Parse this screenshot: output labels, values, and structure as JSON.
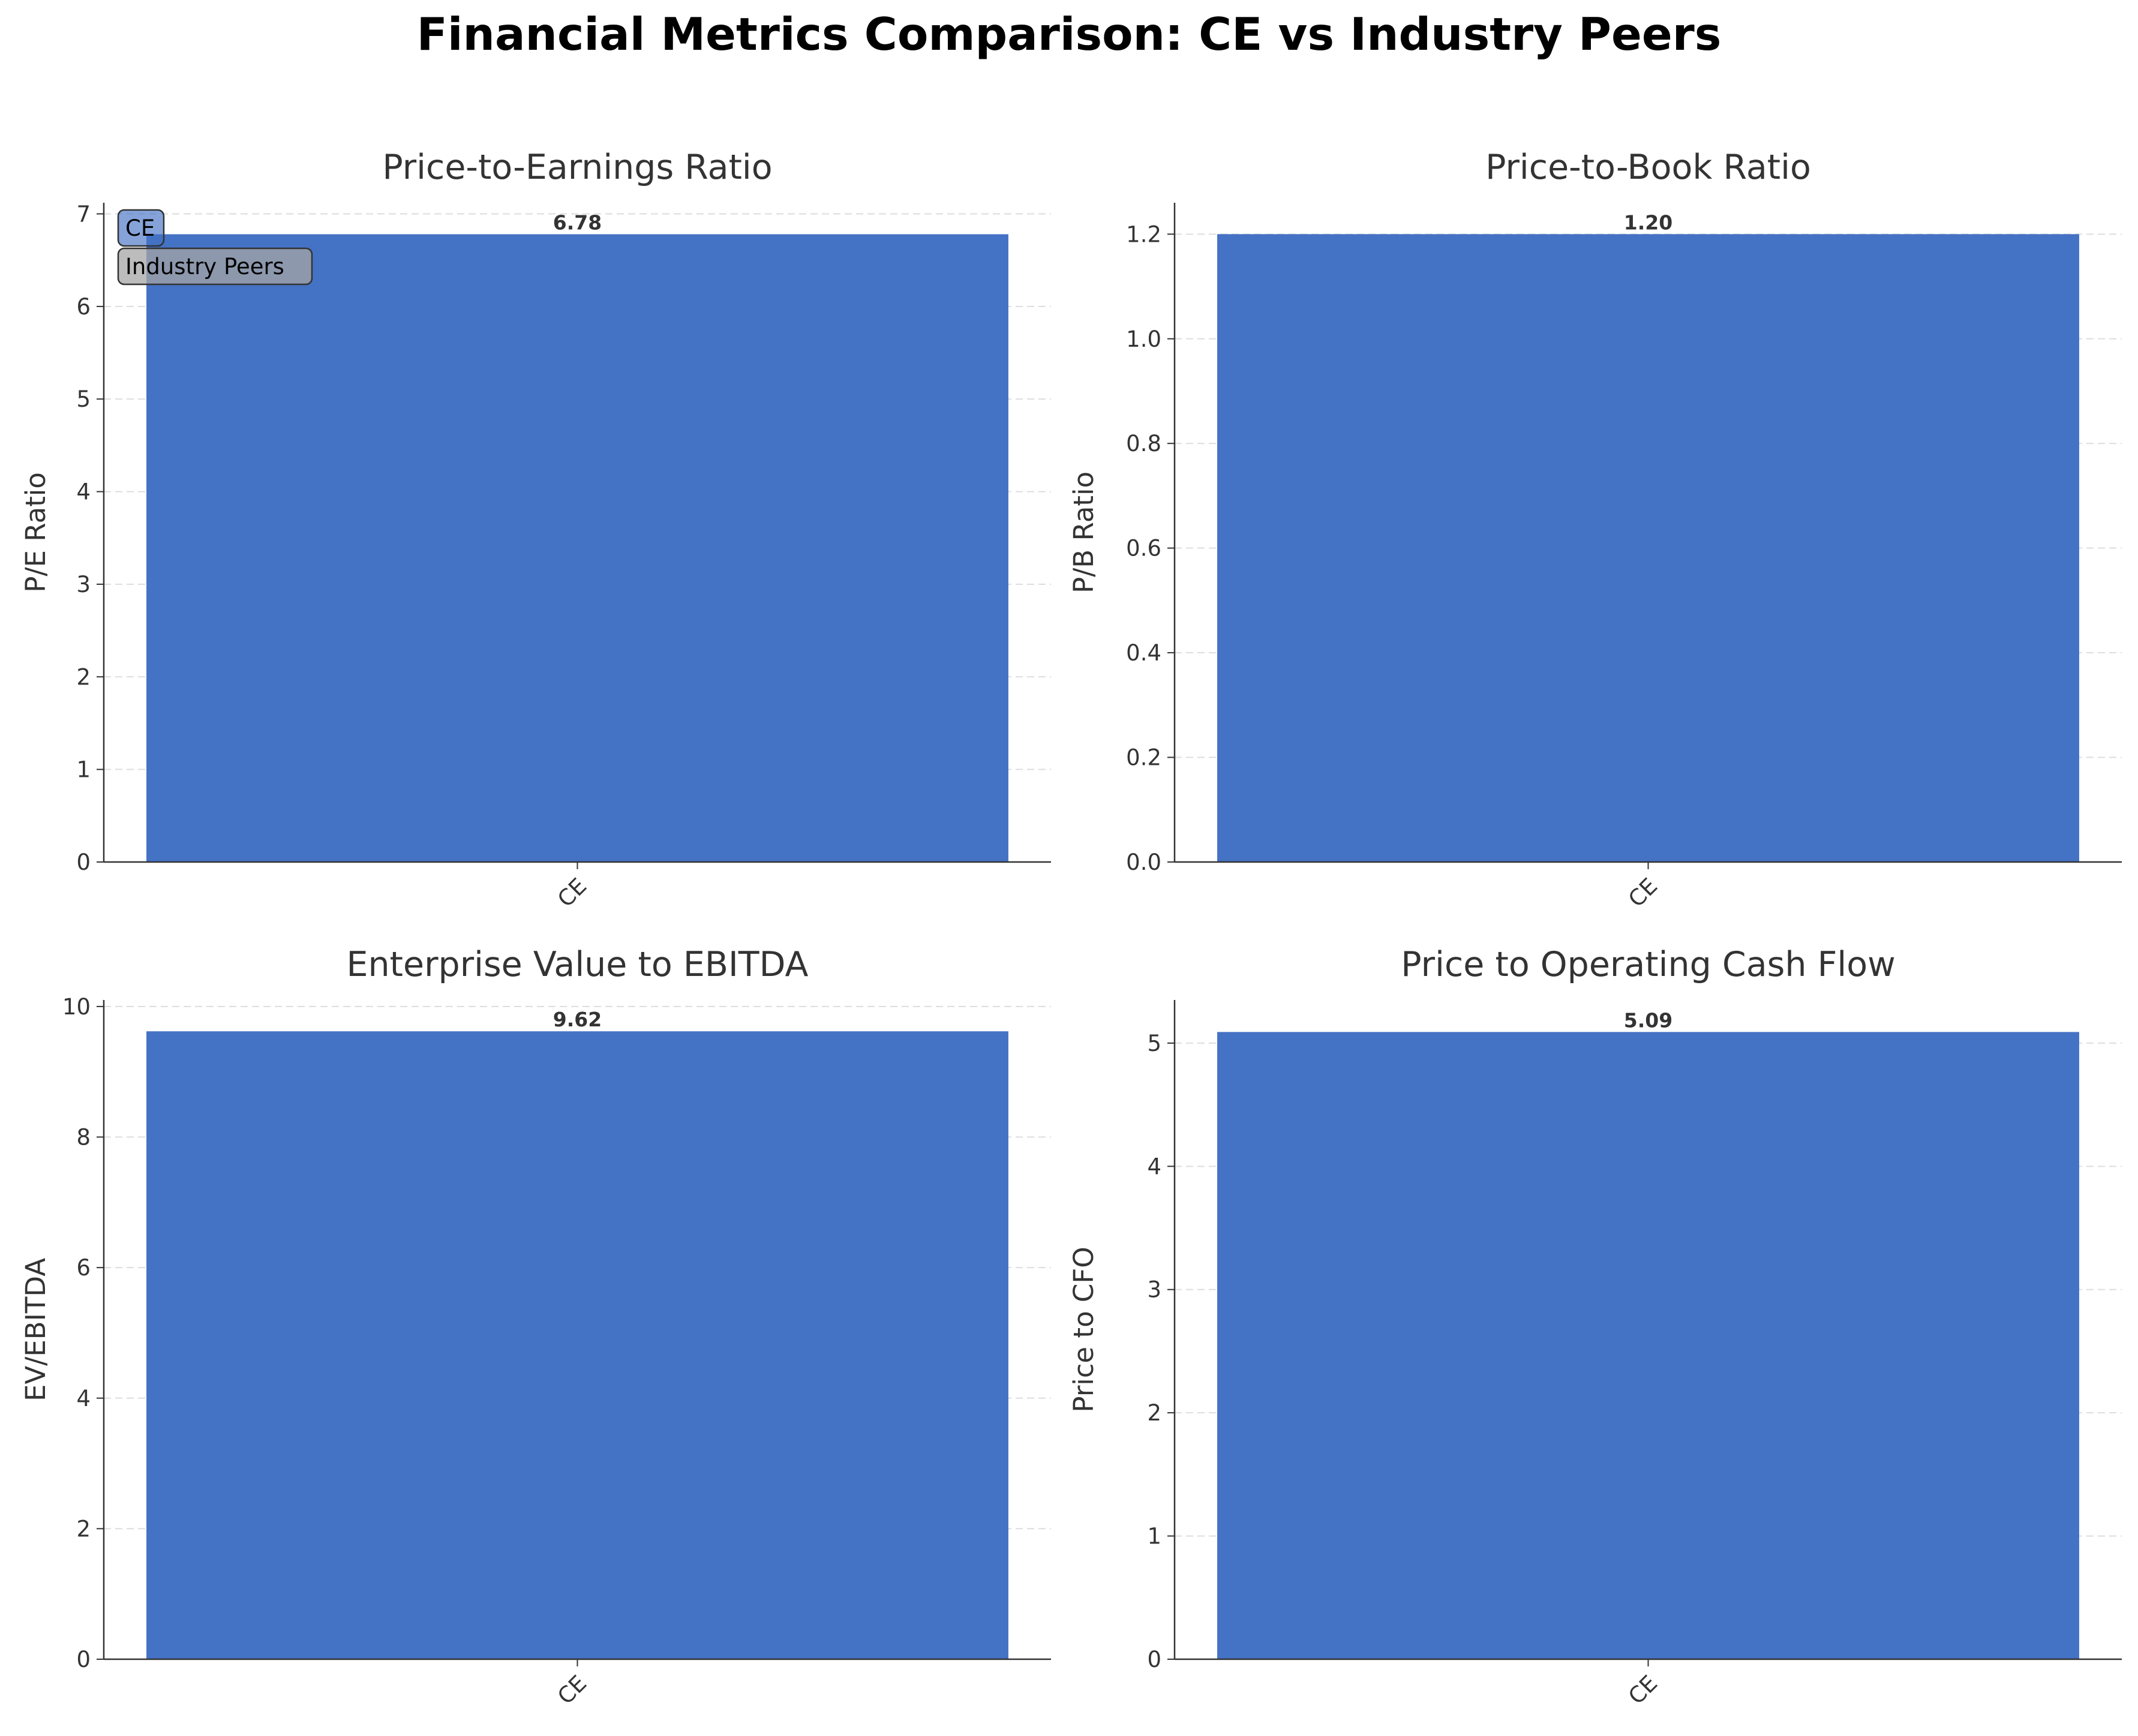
{
  "title": "Financial Metrics Comparison: CE vs Industry Peers",
  "legend": {
    "entries": [
      {
        "label": "CE",
        "color": "#4472C4"
      },
      {
        "label": "Industry Peers",
        "color": "#A5A5A5"
      }
    ]
  },
  "chart_data": [
    {
      "type": "bar",
      "title": "Price-to-Earnings Ratio",
      "ylabel": "P/E Ratio",
      "categories": [
        "CE"
      ],
      "series": [
        {
          "name": "CE",
          "values": [
            6.78
          ],
          "color": "#4472C4"
        }
      ],
      "data_labels": [
        "6.78"
      ],
      "ylim": [
        0,
        7.12
      ],
      "yticks": [
        0,
        1,
        2,
        3,
        4,
        5,
        6,
        7
      ],
      "ytick_labels": [
        "0",
        "1",
        "2",
        "3",
        "4",
        "5",
        "6",
        "7"
      ],
      "grid": "horizontal dashed",
      "legend": "upper left"
    },
    {
      "type": "bar",
      "title": "Price-to-Book Ratio",
      "ylabel": "P/B Ratio",
      "categories": [
        "CE"
      ],
      "series": [
        {
          "name": "CE",
          "values": [
            1.2
          ],
          "color": "#4472C4"
        }
      ],
      "data_labels": [
        "1.20"
      ],
      "ylim": [
        0,
        1.26
      ],
      "yticks": [
        0,
        0.2,
        0.4,
        0.6,
        0.8,
        1.0,
        1.2
      ],
      "ytick_labels": [
        "0.0",
        "0.2",
        "0.4",
        "0.6",
        "0.8",
        "1.0",
        "1.2"
      ],
      "grid": "horizontal dashed"
    },
    {
      "type": "bar",
      "title": "Enterprise Value to EBITDA",
      "ylabel": "EV/EBITDA",
      "categories": [
        "CE"
      ],
      "series": [
        {
          "name": "CE",
          "values": [
            9.62
          ],
          "color": "#4472C4"
        }
      ],
      "data_labels": [
        "9.62"
      ],
      "ylim": [
        0,
        10.1
      ],
      "yticks": [
        0,
        2,
        4,
        6,
        8,
        10
      ],
      "ytick_labels": [
        "0",
        "2",
        "4",
        "6",
        "8",
        "10"
      ],
      "grid": "horizontal dashed"
    },
    {
      "type": "bar",
      "title": "Price to Operating Cash Flow",
      "ylabel": "Price to CFO",
      "categories": [
        "CE"
      ],
      "series": [
        {
          "name": "CE",
          "values": [
            5.09
          ],
          "color": "#4472C4"
        }
      ],
      "data_labels": [
        "5.09"
      ],
      "ylim": [
        0,
        5.35
      ],
      "yticks": [
        0,
        1,
        2,
        3,
        4,
        5
      ],
      "ytick_labels": [
        "0",
        "1",
        "2",
        "3",
        "4",
        "5"
      ],
      "grid": "horizontal dashed"
    }
  ]
}
